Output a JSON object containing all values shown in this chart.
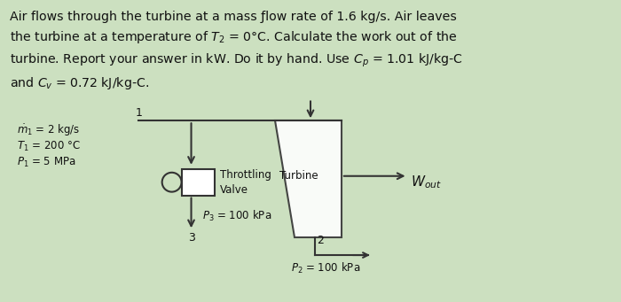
{
  "bg_color": "#cce0c0",
  "label_m1": "$\\dot{m}_1$ = 2 kg/s",
  "label_T1": "$T_1$ = 200 °C",
  "label_P1": "$P_1$ = 5 MPa",
  "label_throttling": "Throttling",
  "label_valve": "Valve",
  "label_P3": "$P_3$ = 100 kPa",
  "label_3": "3",
  "label_turbine": "Turbine",
  "label_Wout": "$W_{out}$",
  "label_2": "2",
  "label_P2": "$P_2$ = 100 kPa",
  "label_1": "1",
  "line_color": "#333333",
  "text_color": "#111111"
}
